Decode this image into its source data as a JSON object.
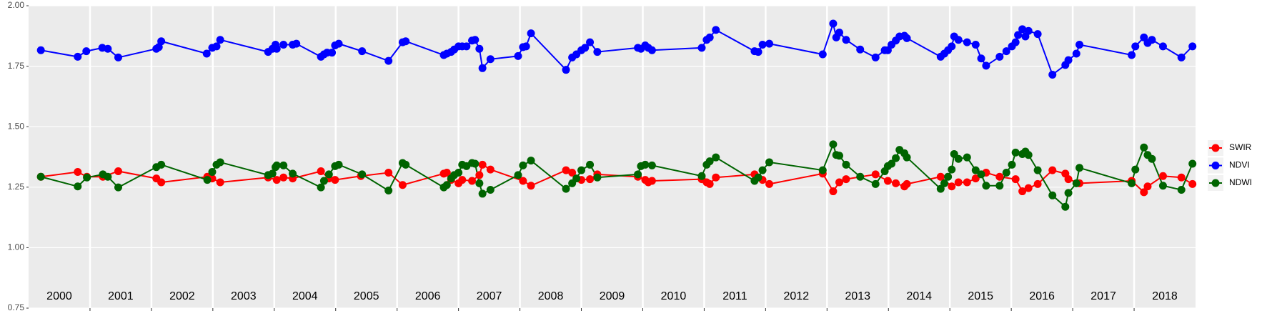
{
  "chart_data": {
    "type": "line",
    "xlim": [
      2000,
      2019
    ],
    "xticks": [
      2001,
      2002,
      2003,
      2004,
      2005,
      2006,
      2007,
      2008,
      2009,
      2010,
      2011,
      2012,
      2013,
      2014,
      2015,
      2016,
      2017,
      2018
    ],
    "ylim": [
      0.75,
      2.0
    ],
    "yticks": [
      {
        "value": 0.75,
        "label": "0.75"
      },
      {
        "value": 1.0,
        "label": "1.00"
      },
      {
        "value": 1.25,
        "label": "1.25"
      },
      {
        "value": 1.5,
        "label": "1.50"
      },
      {
        "value": 1.75,
        "label": "1.75"
      },
      {
        "value": 2.0,
        "label": "2.00"
      }
    ],
    "grid": true,
    "legend": "right",
    "annotations": [
      {
        "x": 2000.5,
        "text": "2000"
      },
      {
        "x": 2001.5,
        "text": "2001"
      },
      {
        "x": 2002.5,
        "text": "2002"
      },
      {
        "x": 2003.5,
        "text": "2003"
      },
      {
        "x": 2004.5,
        "text": "2004"
      },
      {
        "x": 2005.5,
        "text": "2005"
      },
      {
        "x": 2006.5,
        "text": "2006"
      },
      {
        "x": 2007.5,
        "text": "2007"
      },
      {
        "x": 2008.5,
        "text": "2008"
      },
      {
        "x": 2009.5,
        "text": "2009"
      },
      {
        "x": 2010.5,
        "text": "2010"
      },
      {
        "x": 2011.5,
        "text": "2011"
      },
      {
        "x": 2012.5,
        "text": "2012"
      },
      {
        "x": 2013.5,
        "text": "2013"
      },
      {
        "x": 2014.5,
        "text": "2014"
      },
      {
        "x": 2015.5,
        "text": "2015"
      },
      {
        "x": 2016.5,
        "text": "2016"
      },
      {
        "x": 2017.5,
        "text": "2017"
      },
      {
        "x": 2018.5,
        "text": "2018"
      }
    ],
    "series": [
      {
        "name": "SWIR",
        "color": "#ff0000",
        "x": [
          2000.2,
          2000.8,
          2000.95,
          2001.21,
          2001.46,
          2002.08,
          2002.16,
          2002.91,
          2002.99,
          2003.12,
          2003.9,
          2004.04,
          2004.15,
          2004.3,
          2004.76,
          2004.89,
          2004.99,
          2005.41,
          2005.86,
          2006.09,
          2006.76,
          2006.81,
          2006.88,
          2007.0,
          2007.06,
          2007.22,
          2007.34,
          2007.39,
          2007.52,
          2008.05,
          2008.18,
          2008.75,
          2008.85,
          2009.0,
          2009.14,
          2009.26,
          2009.92,
          2010.04,
          2010.09,
          2010.15,
          2010.96,
          2011.04,
          2011.09,
          2011.19,
          2011.82,
          2011.95,
          2012.06,
          2012.93,
          2013.1,
          2013.2,
          2013.31,
          2013.79,
          2013.99,
          2014.12,
          2014.26,
          2014.3,
          2014.85,
          2015.03,
          2015.14,
          2015.28,
          2015.42,
          2015.59,
          2015.81,
          2016.07,
          2016.18,
          2016.28,
          2016.43,
          2016.67,
          2016.88,
          2016.93,
          2017.11,
          2017.96,
          2018.16,
          2018.22,
          2018.47,
          2018.77,
          2018.95
        ],
        "values": [
          1.293,
          1.313,
          1.293,
          1.293,
          1.316,
          1.286,
          1.27,
          1.293,
          1.286,
          1.27,
          1.29,
          1.28,
          1.29,
          1.286,
          1.316,
          1.286,
          1.28,
          1.296,
          1.31,
          1.259,
          1.306,
          1.31,
          1.28,
          1.266,
          1.28,
          1.276,
          1.3,
          1.343,
          1.323,
          1.276,
          1.256,
          1.32,
          1.31,
          1.28,
          1.283,
          1.303,
          1.293,
          1.28,
          1.27,
          1.276,
          1.283,
          1.27,
          1.263,
          1.29,
          1.303,
          1.28,
          1.263,
          1.306,
          1.233,
          1.27,
          1.283,
          1.303,
          1.276,
          1.266,
          1.253,
          1.263,
          1.293,
          1.253,
          1.27,
          1.27,
          1.286,
          1.31,
          1.293,
          1.283,
          1.233,
          1.246,
          1.263,
          1.32,
          1.306,
          1.283,
          1.266,
          1.276,
          1.229,
          1.253,
          1.296,
          1.29,
          1.263
        ]
      },
      {
        "name": "NDVI",
        "color": "#0000ff",
        "x": [
          2000.2,
          2000.8,
          2000.94,
          2001.2,
          2001.29,
          2001.46,
          2002.08,
          2002.12,
          2002.16,
          2002.9,
          2002.99,
          2003.06,
          2003.12,
          2003.9,
          2003.97,
          2004.02,
          2004.04,
          2004.15,
          2004.3,
          2004.36,
          2004.76,
          2004.81,
          2004.86,
          2004.94,
          2004.99,
          2005.05,
          2005.43,
          2005.86,
          2006.09,
          2006.14,
          2006.76,
          2006.81,
          2006.88,
          2006.93,
          2007.0,
          2007.06,
          2007.13,
          2007.22,
          2007.27,
          2007.34,
          2007.39,
          2007.52,
          2007.97,
          2008.05,
          2008.1,
          2008.18,
          2008.75,
          2008.85,
          2008.92,
          2009.0,
          2009.06,
          2009.14,
          2009.26,
          2009.92,
          2009.97,
          2010.04,
          2010.09,
          2010.15,
          2010.96,
          2011.04,
          2011.09,
          2011.19,
          2011.82,
          2011.88,
          2011.95,
          2012.06,
          2012.93,
          2013.1,
          2013.15,
          2013.2,
          2013.31,
          2013.54,
          2013.79,
          2013.94,
          2013.99,
          2014.05,
          2014.12,
          2014.18,
          2014.26,
          2014.3,
          2014.85,
          2014.91,
          2014.97,
          2015.03,
          2015.07,
          2015.14,
          2015.28,
          2015.42,
          2015.51,
          2015.59,
          2015.81,
          2015.92,
          2016.01,
          2016.07,
          2016.11,
          2016.18,
          2016.23,
          2016.28,
          2016.43,
          2016.67,
          2016.88,
          2016.93,
          2017.06,
          2017.11,
          2017.96,
          2018.02,
          2018.16,
          2018.22,
          2018.29,
          2018.47,
          2018.77,
          2018.95
        ],
        "values": [
          1.816,
          1.789,
          1.812,
          1.826,
          1.822,
          1.786,
          1.822,
          1.829,
          1.853,
          1.802,
          1.826,
          1.832,
          1.859,
          1.809,
          1.822,
          1.839,
          1.822,
          1.839,
          1.839,
          1.843,
          1.789,
          1.799,
          1.806,
          1.806,
          1.836,
          1.843,
          1.812,
          1.772,
          1.849,
          1.853,
          1.796,
          1.802,
          1.809,
          1.819,
          1.832,
          1.832,
          1.832,
          1.856,
          1.859,
          1.822,
          1.742,
          1.779,
          1.792,
          1.829,
          1.832,
          1.886,
          1.735,
          1.786,
          1.799,
          1.816,
          1.826,
          1.849,
          1.809,
          1.826,
          1.822,
          1.836,
          1.826,
          1.816,
          1.826,
          1.859,
          1.869,
          1.9,
          1.812,
          1.809,
          1.839,
          1.843,
          1.799,
          1.926,
          1.869,
          1.889,
          1.859,
          1.819,
          1.786,
          1.816,
          1.816,
          1.839,
          1.856,
          1.873,
          1.876,
          1.866,
          1.789,
          1.802,
          1.816,
          1.832,
          1.873,
          1.859,
          1.849,
          1.839,
          1.782,
          1.752,
          1.789,
          1.812,
          1.832,
          1.849,
          1.879,
          1.903,
          1.873,
          1.896,
          1.883,
          1.715,
          1.755,
          1.775,
          1.802,
          1.839,
          1.796,
          1.832,
          1.869,
          1.846,
          1.859,
          1.832,
          1.786,
          1.832
        ]
      },
      {
        "name": "NDWI",
        "color": "#006400",
        "x": [
          2000.2,
          2000.8,
          2000.95,
          2001.21,
          2001.29,
          2001.46,
          2002.08,
          2002.16,
          2002.91,
          2002.99,
          2003.06,
          2003.12,
          2003.9,
          2003.97,
          2004.02,
          2004.04,
          2004.15,
          2004.3,
          2004.76,
          2004.81,
          2004.89,
          2004.99,
          2005.05,
          2005.43,
          2005.86,
          2006.09,
          2006.14,
          2006.76,
          2006.81,
          2006.88,
          2006.93,
          2007.0,
          2007.06,
          2007.13,
          2007.22,
          2007.27,
          2007.34,
          2007.39,
          2007.52,
          2007.97,
          2008.05,
          2008.18,
          2008.75,
          2008.85,
          2008.92,
          2009.0,
          2009.14,
          2009.26,
          2009.92,
          2009.97,
          2010.04,
          2010.15,
          2010.96,
          2011.04,
          2011.09,
          2011.19,
          2011.82,
          2011.88,
          2011.95,
          2012.06,
          2012.93,
          2013.1,
          2013.15,
          2013.2,
          2013.31,
          2013.54,
          2013.79,
          2013.94,
          2013.99,
          2014.05,
          2014.12,
          2014.18,
          2014.26,
          2014.3,
          2014.85,
          2014.91,
          2014.97,
          2015.03,
          2015.07,
          2015.14,
          2015.28,
          2015.42,
          2015.51,
          2015.59,
          2015.81,
          2015.92,
          2016.01,
          2016.07,
          2016.18,
          2016.23,
          2016.28,
          2016.43,
          2016.67,
          2016.88,
          2016.93,
          2017.06,
          2017.11,
          2017.96,
          2018.02,
          2018.16,
          2018.22,
          2018.29,
          2018.47,
          2018.77,
          2018.95
        ],
        "values": [
          1.293,
          1.253,
          1.29,
          1.303,
          1.293,
          1.249,
          1.333,
          1.343,
          1.28,
          1.313,
          1.343,
          1.353,
          1.3,
          1.306,
          1.333,
          1.34,
          1.34,
          1.306,
          1.249,
          1.276,
          1.303,
          1.337,
          1.343,
          1.303,
          1.236,
          1.35,
          1.343,
          1.249,
          1.259,
          1.286,
          1.3,
          1.31,
          1.343,
          1.337,
          1.35,
          1.347,
          1.266,
          1.223,
          1.239,
          1.3,
          1.34,
          1.36,
          1.243,
          1.266,
          1.286,
          1.32,
          1.343,
          1.29,
          1.303,
          1.337,
          1.343,
          1.34,
          1.296,
          1.343,
          1.357,
          1.373,
          1.276,
          1.29,
          1.32,
          1.353,
          1.32,
          1.427,
          1.383,
          1.38,
          1.343,
          1.293,
          1.263,
          1.316,
          1.337,
          1.347,
          1.37,
          1.404,
          1.39,
          1.373,
          1.243,
          1.266,
          1.293,
          1.323,
          1.387,
          1.367,
          1.373,
          1.32,
          1.303,
          1.256,
          1.256,
          1.31,
          1.343,
          1.393,
          1.387,
          1.397,
          1.383,
          1.32,
          1.216,
          1.169,
          1.226,
          1.266,
          1.33,
          1.266,
          1.323,
          1.414,
          1.383,
          1.367,
          1.256,
          1.239,
          1.347
        ]
      }
    ]
  }
}
